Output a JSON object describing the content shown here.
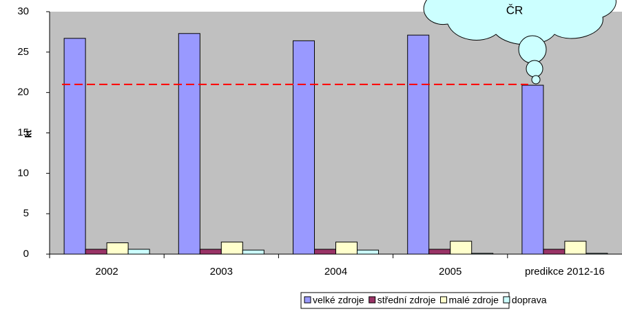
{
  "chart_data": {
    "type": "bar",
    "y_label": "kt",
    "annotation": "ČR",
    "categories": [
      "2002",
      "2003",
      "2004",
      "2005",
      "predikce 2012-16"
    ],
    "series": [
      {
        "name": "velké zdroje",
        "color": "#9999ff",
        "values": [
          26.7,
          27.3,
          26.4,
          27.1,
          20.9
        ]
      },
      {
        "name": "střední zdroje",
        "color": "#993366",
        "values": [
          0.6,
          0.6,
          0.6,
          0.6,
          0.6
        ]
      },
      {
        "name": "malé zdroje",
        "color": "#ffffcc",
        "values": [
          1.4,
          1.5,
          1.5,
          1.6,
          1.6
        ]
      },
      {
        "name": "doprava",
        "color": "#ccffff",
        "values": [
          0.6,
          0.5,
          0.5,
          0.1,
          0.1
        ]
      }
    ],
    "ylim": [
      0,
      30
    ],
    "yticks": [
      0,
      5,
      10,
      15,
      20,
      25,
      30
    ],
    "reference_line": {
      "value": 21,
      "color": "#ff0000"
    },
    "legend": "bottom"
  }
}
